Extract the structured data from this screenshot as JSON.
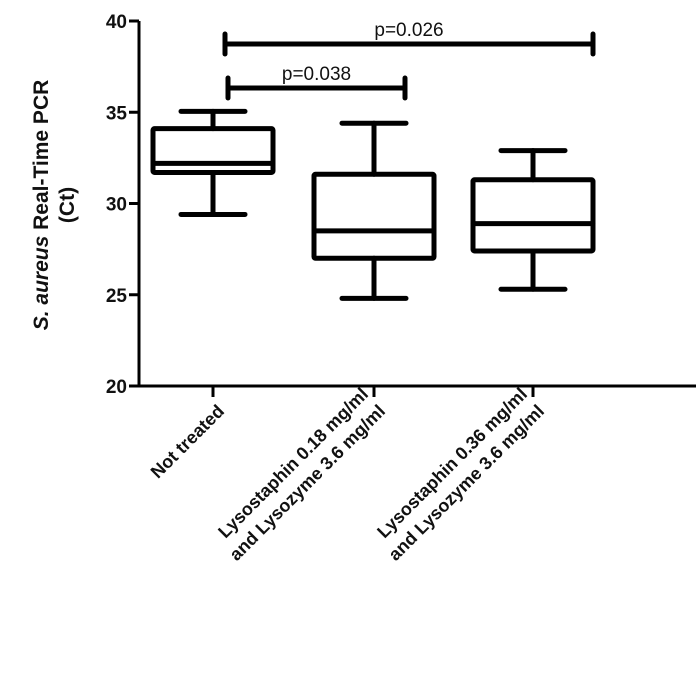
{
  "chart_data": {
    "type": "box",
    "title": "",
    "ylabel": "S. aureus Real-Time PCR (Ct)",
    "ylabel_parts": {
      "italic": "S. aureus",
      "rest": " Real-Time PCR",
      "line2": "(Ct)"
    },
    "xlabel": "",
    "ylim": [
      20,
      40
    ],
    "yticks": [
      20,
      25,
      30,
      35,
      40
    ],
    "grid": false,
    "categories": [
      "Not treated",
      "Lysostaphin 0.18 mg/ml and Lysozyme 3.6 mg/ml",
      "Lysostaphin 0.36 mg/ml and Lysozyme 3.6 mg/ml"
    ],
    "category_lines": [
      [
        "Not treated"
      ],
      [
        "Lysostaphin 0.18 mg/ml",
        "and Lysozyme 3.6 mg/ml"
      ],
      [
        "Lysostaphin 0.36 mg/ml",
        "and Lysozyme 3.6 mg/ml"
      ]
    ],
    "boxes": [
      {
        "min": 29.4,
        "q1": 31.7,
        "median": 32.2,
        "q3": 34.1,
        "max": 35.05
      },
      {
        "min": 24.8,
        "q1": 27.0,
        "median": 28.5,
        "q3": 31.6,
        "max": 34.4
      },
      {
        "min": 25.3,
        "q1": 27.4,
        "median": 28.9,
        "q3": 31.3,
        "max": 32.9
      }
    ],
    "annotations": [
      {
        "type": "significance",
        "from": 0,
        "to": 1,
        "label": "p=0.038"
      },
      {
        "type": "significance",
        "from": 0,
        "to": 2,
        "label": "p=0.026"
      }
    ]
  }
}
